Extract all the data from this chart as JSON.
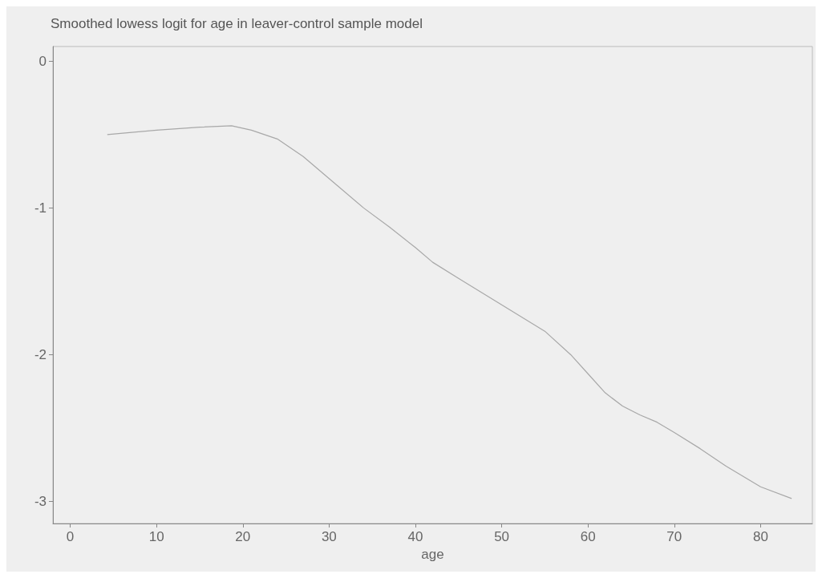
{
  "chart_data": {
    "type": "line",
    "title": "Smoothed lowess logit for age in leaver-control sample model",
    "xlabel": "age",
    "x": [
      4.3,
      10,
      15,
      18.7,
      21,
      24,
      27,
      30,
      34,
      37,
      40,
      42,
      45,
      50,
      55,
      58,
      60,
      62,
      64,
      66,
      68,
      70,
      73,
      76,
      80,
      83.6
    ],
    "series": [
      {
        "color": "#a8a8a8",
        "values": [
          -0.5,
          -0.47,
          -0.45,
          -0.44,
          -0.47,
          -0.53,
          -0.65,
          -0.8,
          -1.0,
          -1.13,
          -1.27,
          -1.37,
          -1.48,
          -1.66,
          -1.84,
          -2.0,
          -2.13,
          -2.26,
          -2.35,
          -2.41,
          -2.46,
          -2.53,
          -2.64,
          -2.76,
          -2.9,
          -2.98
        ]
      }
    ],
    "xlim": [
      -2,
      86
    ],
    "xticks": [
      0,
      10,
      20,
      30,
      40,
      50,
      60,
      70,
      80
    ],
    "ylim": [
      -3.15,
      0.1
    ],
    "yticks": [
      -3,
      -2,
      -1,
      0
    ],
    "grid": false,
    "marker": "none",
    "line_style": "solid"
  }
}
